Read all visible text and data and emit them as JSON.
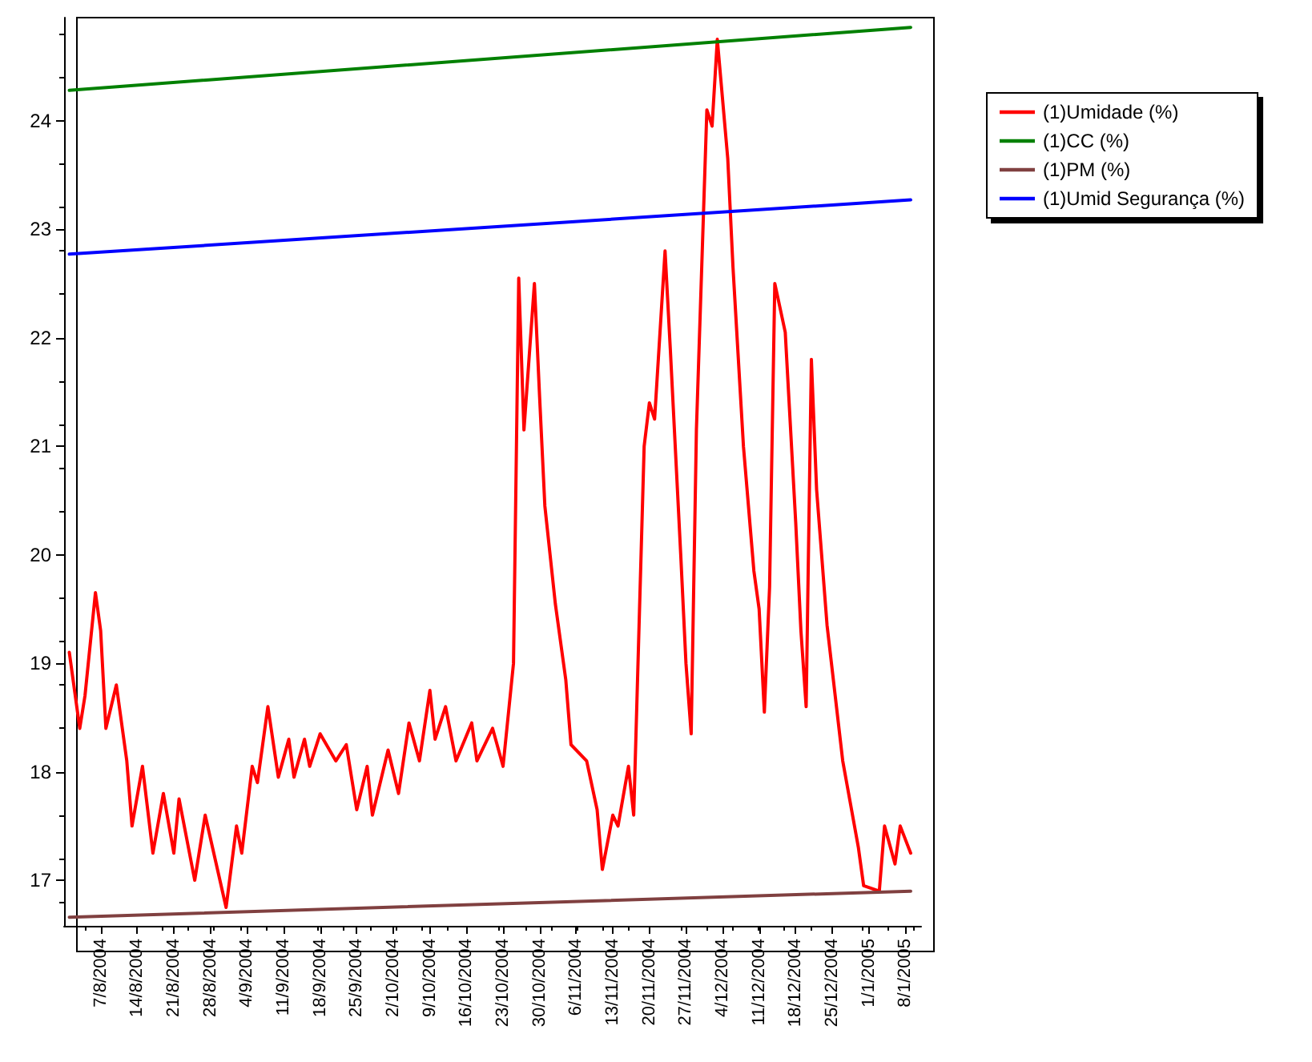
{
  "chart_data": {
    "type": "line",
    "marker": "none",
    "line_style": "solid",
    "grid": false,
    "legend": "top right",
    "xlim": [
      "2004-07-31",
      "2005-01-11"
    ],
    "ylim": [
      16.58,
      24.95
    ],
    "yticks": [
      17,
      18,
      19,
      20,
      21,
      22,
      23,
      24
    ],
    "xticks": [
      {
        "value": "2004-08-07",
        "label": "7/8/2004"
      },
      {
        "value": "2004-08-14",
        "label": "14/8/2004"
      },
      {
        "value": "2004-08-21",
        "label": "21/8/2004"
      },
      {
        "value": "2004-08-28",
        "label": "28/8/2004"
      },
      {
        "value": "2004-09-04",
        "label": "4/9/2004"
      },
      {
        "value": "2004-09-11",
        "label": "11/9/2004"
      },
      {
        "value": "2004-09-18",
        "label": "18/9/2004"
      },
      {
        "value": "2004-09-25",
        "label": "25/9/2004"
      },
      {
        "value": "2004-10-02",
        "label": "2/10/2004"
      },
      {
        "value": "2004-10-09",
        "label": "9/10/2004"
      },
      {
        "value": "2004-10-16",
        "label": "16/10/2004"
      },
      {
        "value": "2004-10-23",
        "label": "23/10/2004"
      },
      {
        "value": "2004-10-30",
        "label": "30/10/2004"
      },
      {
        "value": "2004-11-06",
        "label": "6/11/2004"
      },
      {
        "value": "2004-11-13",
        "label": "13/11/2004"
      },
      {
        "value": "2004-11-20",
        "label": "20/11/2004"
      },
      {
        "value": "2004-11-27",
        "label": "27/11/2004"
      },
      {
        "value": "2004-12-04",
        "label": "4/12/2004"
      },
      {
        "value": "2004-12-11",
        "label": "11/12/2004"
      },
      {
        "value": "2004-12-18",
        "label": "18/12/2004"
      },
      {
        "value": "2004-12-25",
        "label": "25/12/2004"
      },
      {
        "value": "2005-01-01",
        "label": "1/1/2005"
      },
      {
        "value": "2005-01-08",
        "label": "8/1/2005"
      }
    ],
    "series": [
      {
        "name": "(1)Umidade (%)",
        "color": "#ff0000",
        "x": [
          "2004-08-01",
          "2004-08-03",
          "2004-08-04",
          "2004-08-06",
          "2004-08-07",
          "2004-08-08",
          "2004-08-10",
          "2004-08-12",
          "2004-08-13",
          "2004-08-15",
          "2004-08-17",
          "2004-08-19",
          "2004-08-21",
          "2004-08-22",
          "2004-08-25",
          "2004-08-27",
          "2004-08-31",
          "2004-09-02",
          "2004-09-03",
          "2004-09-05",
          "2004-09-06",
          "2004-09-08",
          "2004-09-10",
          "2004-09-12",
          "2004-09-13",
          "2004-09-15",
          "2004-09-16",
          "2004-09-18",
          "2004-09-21",
          "2004-09-23",
          "2004-09-25",
          "2004-09-27",
          "2004-09-28",
          "2004-10-01",
          "2004-10-03",
          "2004-10-05",
          "2004-10-07",
          "2004-10-09",
          "2004-10-10",
          "2004-10-12",
          "2004-10-14",
          "2004-10-17",
          "2004-10-18",
          "2004-10-21",
          "2004-10-23",
          "2004-10-25",
          "2004-10-26",
          "2004-10-27",
          "2004-10-29",
          "2004-10-30",
          "2004-10-31",
          "2004-11-02",
          "2004-11-04",
          "2004-11-05",
          "2004-11-08",
          "2004-11-10",
          "2004-11-11",
          "2004-11-13",
          "2004-11-14",
          "2004-11-16",
          "2004-11-17",
          "2004-11-19",
          "2004-11-20",
          "2004-11-21",
          "2004-11-23",
          "2004-11-24",
          "2004-11-26",
          "2004-11-27",
          "2004-11-28",
          "2004-11-29",
          "2004-12-01",
          "2004-12-02",
          "2004-12-03",
          "2004-12-05",
          "2004-12-06",
          "2004-12-08",
          "2004-12-10",
          "2004-12-11",
          "2004-12-12",
          "2004-12-13",
          "2004-12-14",
          "2004-12-16",
          "2004-12-18",
          "2004-12-19",
          "2004-12-20",
          "2004-12-21",
          "2004-12-22",
          "2004-12-24",
          "2004-12-27",
          "2004-12-30",
          "2004-12-31",
          "2005-01-03",
          "2005-01-04",
          "2005-01-06",
          "2005-01-07",
          "2005-01-09"
        ],
        "values": [
          19.1,
          18.4,
          18.7,
          19.65,
          19.3,
          18.4,
          18.8,
          18.1,
          17.5,
          18.05,
          17.25,
          17.8,
          17.25,
          17.75,
          17.0,
          17.6,
          16.75,
          17.5,
          17.25,
          18.05,
          17.9,
          18.6,
          17.95,
          18.3,
          17.95,
          18.3,
          18.05,
          18.35,
          18.1,
          18.25,
          17.65,
          18.05,
          17.6,
          18.2,
          17.8,
          18.45,
          18.1,
          18.75,
          18.3,
          18.6,
          18.1,
          18.45,
          18.1,
          18.4,
          18.05,
          19.0,
          22.55,
          21.15,
          22.5,
          21.45,
          20.45,
          19.55,
          18.85,
          18.25,
          18.1,
          17.65,
          17.1,
          17.6,
          17.5,
          18.05,
          17.6,
          21.0,
          21.4,
          21.25,
          22.8,
          21.9,
          20.0,
          19.0,
          18.35,
          21.15,
          24.1,
          23.95,
          24.75,
          23.65,
          22.65,
          21.0,
          19.85,
          19.5,
          18.55,
          19.7,
          22.5,
          22.05,
          20.3,
          19.3,
          18.6,
          21.8,
          20.6,
          19.35,
          18.1,
          17.3,
          16.95,
          16.9,
          17.5,
          17.15,
          17.5,
          17.25
        ]
      },
      {
        "name": "(1)CC (%)",
        "color": "#008000",
        "x": [
          "2004-08-01",
          "2005-01-09"
        ],
        "values": [
          24.28,
          24.86
        ]
      },
      {
        "name": "(1)PM (%)",
        "color": "#804040",
        "x": [
          "2004-08-01",
          "2005-01-09"
        ],
        "values": [
          16.66,
          16.9
        ]
      },
      {
        "name": "(1)Umid Segurança (%)",
        "color": "#0000ff",
        "x": [
          "2004-08-01",
          "2005-01-09"
        ],
        "values": [
          22.77,
          23.27
        ]
      }
    ]
  }
}
